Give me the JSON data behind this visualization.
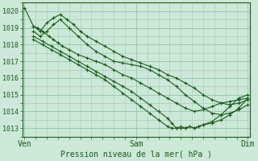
{
  "background_color": "#cce8d8",
  "plot_bg_color": "#cce8d8",
  "grid_color": "#99ccb0",
  "line_color": "#1a5c1a",
  "ylim": [
    1012.5,
    1020.5
  ],
  "ylabel_values": [
    1013,
    1014,
    1015,
    1016,
    1017,
    1018,
    1019,
    1020
  ],
  "xlabel": "Pression niveau de la mer( hPa )",
  "xtick_labels": [
    "Ven",
    "Sam",
    "Dim"
  ],
  "xtick_positions": [
    0.0,
    0.5,
    1.0
  ],
  "xlim": [
    -0.01,
    1.01
  ],
  "series": [
    {
      "x": [
        0.0,
        0.04,
        0.06,
        0.08,
        0.11,
        0.13,
        0.15,
        0.17,
        0.2,
        0.24,
        0.28,
        0.32,
        0.36,
        0.4,
        0.44,
        0.48,
        0.52,
        0.56,
        0.6,
        0.64,
        0.68,
        0.72,
        0.76,
        0.8,
        0.84,
        0.88,
        0.92,
        0.96,
        1.0
      ],
      "y": [
        1020.2,
        1019.1,
        1019.0,
        1018.8,
        1018.5,
        1018.3,
        1018.1,
        1017.9,
        1017.7,
        1017.4,
        1017.2,
        1017.0,
        1016.8,
        1016.5,
        1016.2,
        1016.0,
        1015.7,
        1015.4,
        1015.1,
        1014.8,
        1014.5,
        1014.2,
        1014.0,
        1014.1,
        1014.3,
        1014.5,
        1014.6,
        1014.7,
        1014.8
      ]
    },
    {
      "x": [
        0.04,
        0.07,
        0.1,
        0.13,
        0.16,
        0.19,
        0.22,
        0.25,
        0.28,
        0.32,
        0.36,
        0.4,
        0.44,
        0.48,
        0.52,
        0.56,
        0.6,
        0.64,
        0.68,
        0.72,
        0.76,
        0.8,
        0.84,
        0.88,
        0.92,
        0.96,
        1.0
      ],
      "y": [
        1019.1,
        1018.8,
        1019.3,
        1019.6,
        1019.8,
        1019.5,
        1019.2,
        1018.8,
        1018.5,
        1018.2,
        1017.9,
        1017.6,
        1017.3,
        1017.1,
        1016.9,
        1016.7,
        1016.5,
        1016.2,
        1016.0,
        1015.7,
        1015.4,
        1015.0,
        1014.7,
        1014.5,
        1014.4,
        1014.5,
        1014.7
      ]
    },
    {
      "x": [
        0.04,
        0.07,
        0.1,
        0.13,
        0.16,
        0.2,
        0.24,
        0.28,
        0.32,
        0.36,
        0.4,
        0.44,
        0.48,
        0.52,
        0.56,
        0.6,
        0.64,
        0.68,
        0.72,
        0.76,
        0.8,
        0.84,
        0.88,
        0.92,
        0.96,
        1.0
      ],
      "y": [
        1018.8,
        1018.5,
        1018.8,
        1019.2,
        1019.5,
        1019.0,
        1018.5,
        1018.0,
        1017.6,
        1017.3,
        1017.0,
        1016.9,
        1016.8,
        1016.7,
        1016.5,
        1016.2,
        1015.9,
        1015.5,
        1015.0,
        1014.6,
        1014.2,
        1013.9,
        1013.8,
        1013.9,
        1014.1,
        1014.4
      ]
    },
    {
      "x": [
        0.04,
        0.08,
        0.12,
        0.16,
        0.2,
        0.24,
        0.28,
        0.32,
        0.36,
        0.4,
        0.44,
        0.48,
        0.52,
        0.56,
        0.6,
        0.64,
        0.66,
        0.68,
        0.7,
        0.72,
        0.74,
        0.76,
        0.78,
        0.8,
        0.84,
        0.88,
        0.92,
        0.96,
        1.0
      ],
      "y": [
        1018.5,
        1018.2,
        1017.9,
        1017.6,
        1017.3,
        1017.0,
        1016.7,
        1016.4,
        1016.1,
        1015.8,
        1015.5,
        1015.2,
        1014.8,
        1014.4,
        1014.0,
        1013.6,
        1013.3,
        1013.0,
        1013.1,
        1013.0,
        1013.1,
        1013.0,
        1013.1,
        1013.2,
        1013.3,
        1013.5,
        1013.8,
        1014.2,
        1014.8
      ]
    },
    {
      "x": [
        0.04,
        0.08,
        0.12,
        0.16,
        0.2,
        0.24,
        0.28,
        0.32,
        0.36,
        0.4,
        0.44,
        0.48,
        0.52,
        0.56,
        0.6,
        0.64,
        0.66,
        0.68,
        0.7,
        0.72,
        0.74,
        0.76,
        0.78,
        0.8,
        0.84,
        0.88,
        0.92,
        0.96,
        1.0
      ],
      "y": [
        1018.3,
        1018.0,
        1017.7,
        1017.4,
        1017.1,
        1016.8,
        1016.5,
        1016.2,
        1015.9,
        1015.5,
        1015.1,
        1014.7,
        1014.3,
        1013.9,
        1013.5,
        1013.1,
        1013.0,
        1013.0,
        1013.0,
        1013.0,
        1013.1,
        1013.0,
        1013.1,
        1013.2,
        1013.4,
        1013.8,
        1014.3,
        1014.8,
        1015.0
      ]
    }
  ]
}
